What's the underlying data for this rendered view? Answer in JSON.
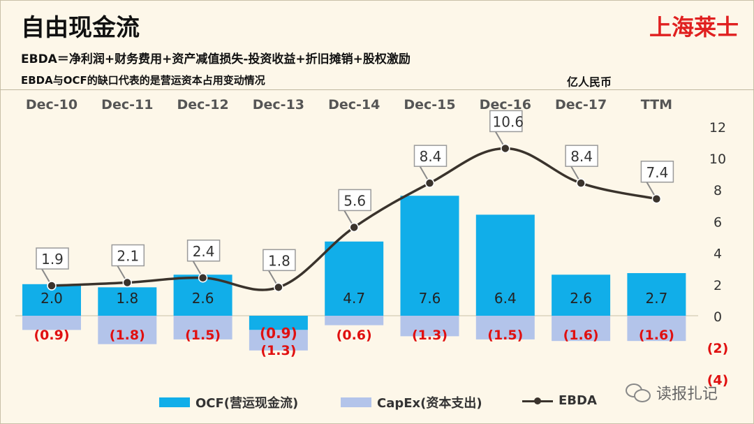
{
  "page": {
    "title": "自由现金流",
    "brand": "上海莱士",
    "formula": "EBDA＝净利润+财务费用+资产减值损失-投资收益+折旧摊销+股权激励",
    "note": "EBDA与OCF的缺口代表的是营运资本占用变动情况",
    "unit": "亿人民币",
    "watermark": "读报扎记"
  },
  "colors": {
    "ocf": "#11aee9",
    "capex": "#b3c4ea",
    "ebda": "#3a332c",
    "negative_label": "#e01010",
    "brand": "#e02020"
  },
  "chart_data": {
    "type": "bar",
    "categories": [
      "Dec-10",
      "Dec-11",
      "Dec-12",
      "Dec-13",
      "Dec-14",
      "Dec-15",
      "Dec-16",
      "Dec-17",
      "TTM"
    ],
    "series": [
      {
        "name": "OCF(营运现金流)",
        "kind": "bar",
        "values": [
          2.0,
          1.8,
          2.6,
          -0.9,
          4.7,
          7.6,
          6.4,
          2.6,
          2.7
        ]
      },
      {
        "name": "CapEx(资本支出)",
        "kind": "bar",
        "values": [
          -0.9,
          -1.8,
          -1.5,
          -1.3,
          -0.6,
          -1.3,
          -1.5,
          -1.6,
          -1.6
        ]
      },
      {
        "name": "EBDA",
        "kind": "line",
        "values": [
          1.9,
          2.1,
          2.4,
          1.8,
          5.6,
          8.4,
          10.6,
          8.4,
          7.4
        ]
      }
    ],
    "data_labels": {
      "ocf": [
        "2.0",
        "1.8",
        "2.6",
        "(0.9)",
        "4.7",
        "7.6",
        "6.4",
        "2.6",
        "2.7"
      ],
      "capex": [
        "(0.9)",
        "(1.8)",
        "(1.5)",
        "(1.3)",
        "(0.6)",
        "(1.3)",
        "(1.5)",
        "(1.6)",
        "(1.6)"
      ],
      "ebda": [
        "1.9",
        "2.1",
        "2.4",
        "1.8",
        "5.6",
        "8.4",
        "10.6",
        "8.4",
        "7.4"
      ]
    },
    "y_ticks": [
      "12",
      "10",
      "8",
      "6",
      "4",
      "2",
      "0",
      "(2)",
      "(4)"
    ],
    "y_tick_values": [
      12,
      10,
      8,
      6,
      4,
      2,
      0,
      -2,
      -4
    ],
    "ylim": [
      -4,
      12
    ],
    "title": "自由现金流",
    "ylabel": "亿人民币",
    "legend_position": "bottom"
  }
}
